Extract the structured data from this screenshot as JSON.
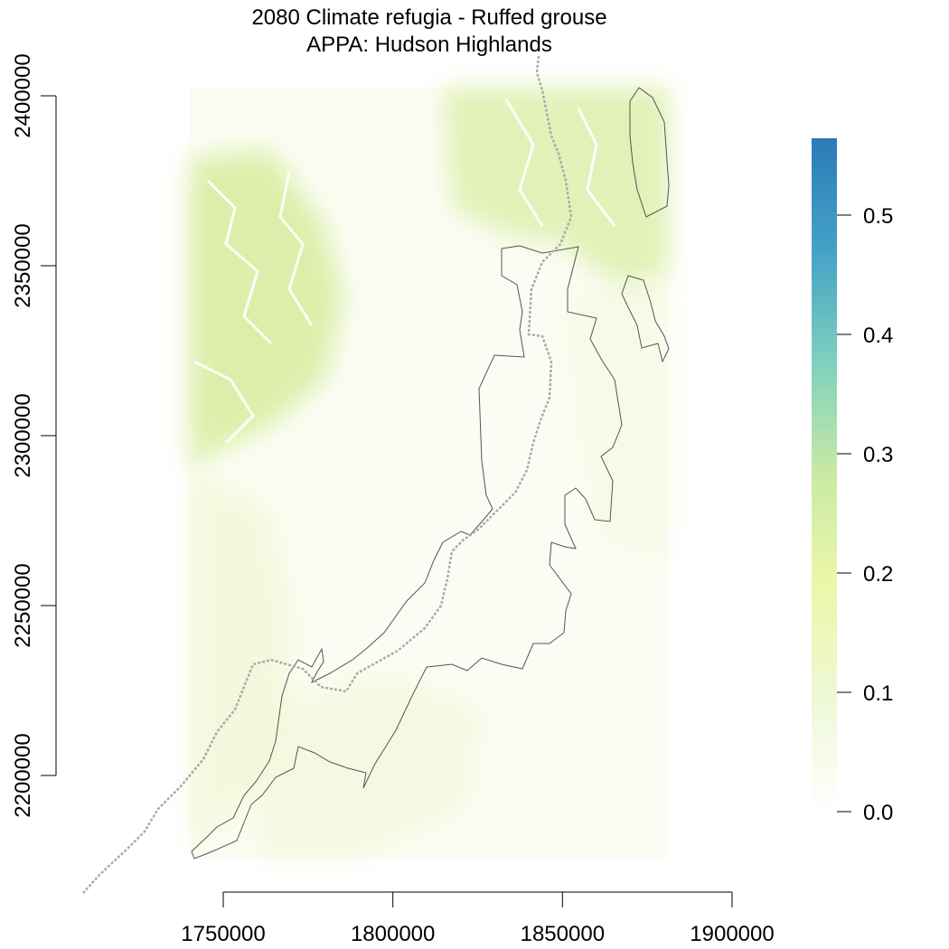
{
  "title": {
    "line1": "2080 Climate refugia - Ruffed grouse",
    "line2": "APPA: Hudson Highlands"
  },
  "colors": {
    "background": "#ffffff",
    "raster_high": "#d8ec9e",
    "raster_mid": "#eef6cf",
    "raster_low": "#f8fcee",
    "boundary": "#555555",
    "trail": "#aaaaaa",
    "axis": "#000000"
  },
  "x_axis": {
    "ticks": [
      "1750000",
      "1800000",
      "1850000",
      "1900000"
    ]
  },
  "y_axis": {
    "ticks": [
      "2200000",
      "2250000",
      "2300000",
      "2350000",
      "2400000"
    ]
  },
  "legend": {
    "color_stops": [
      "#ffffff",
      "#eef8d6",
      "#ecf7a9",
      "#c9eaa4",
      "#7fd0bd",
      "#44a2c6",
      "#2b7bb9"
    ],
    "ticks": [
      "0.0",
      "0.1",
      "0.2",
      "0.3",
      "0.4",
      "0.5"
    ],
    "max_value": 0.565
  },
  "map_layers": {
    "raster": "Climate refugia probability (0.0 to 0.5+)",
    "boundary": "APPA Hudson Highlands boundary",
    "trail": "Appalachian Trail (dashed)"
  }
}
